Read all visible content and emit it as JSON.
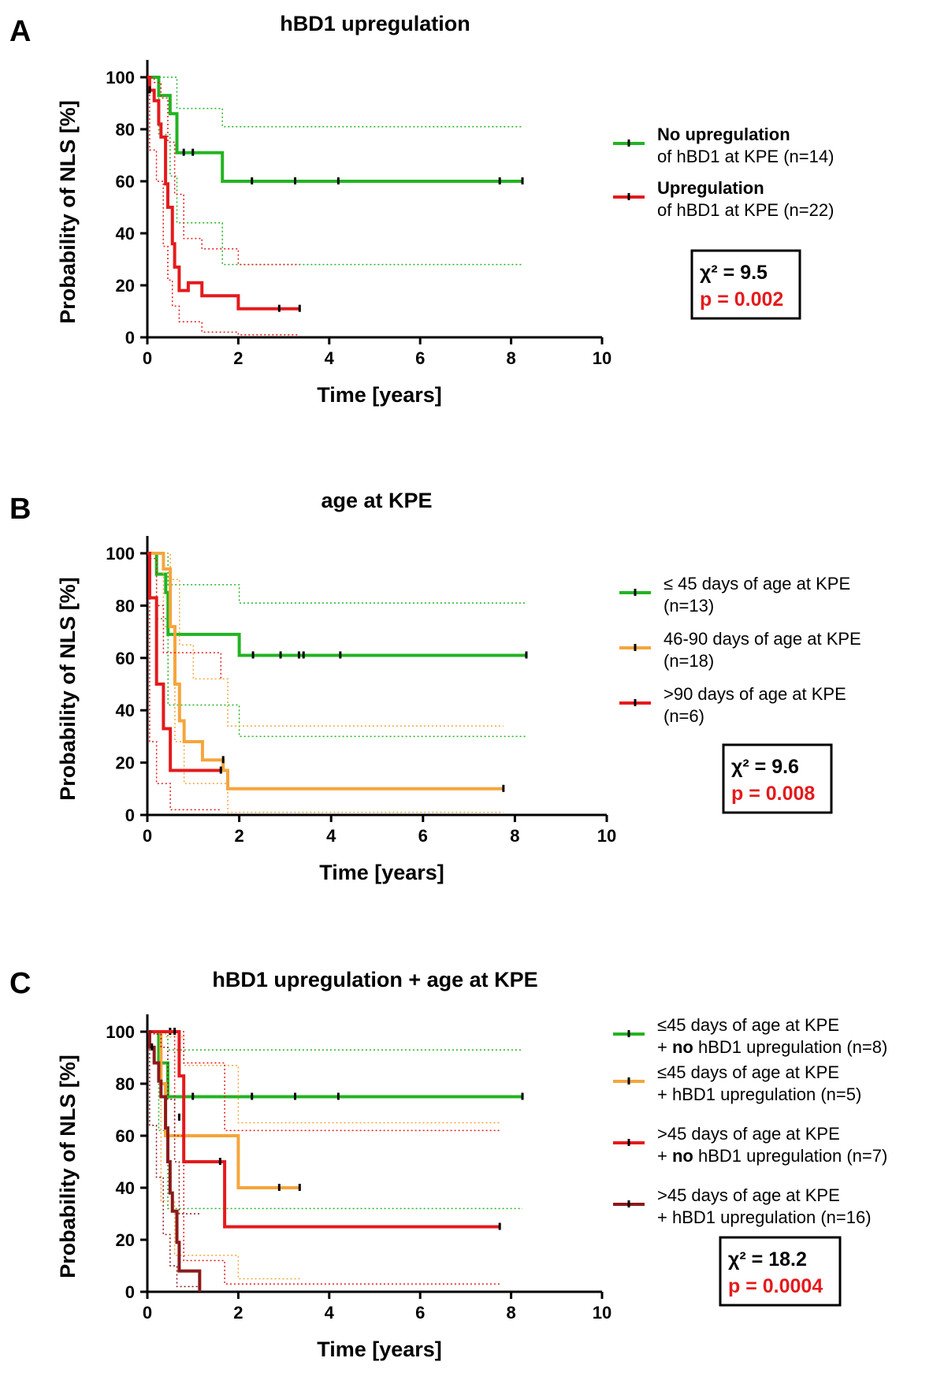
{
  "chart_data": [
    {
      "type": "line",
      "subtype": "kaplan-meier",
      "panel": "A",
      "title": "hBD1 upregulation",
      "xlabel": "Time [years]",
      "ylabel": "Probability of NLS [%]",
      "xlim": [
        0,
        10
      ],
      "ylim": [
        0,
        100
      ],
      "xticks": [
        "0",
        "2",
        "4",
        "6",
        "8",
        "10"
      ],
      "yticks": [
        "0",
        "20",
        "40",
        "60",
        "80",
        "100"
      ],
      "stats": {
        "chi": "χ² = 9.5",
        "p": "p = 0.002"
      },
      "series": [
        {
          "name": "No upregulation of hBD1 at KPE (n=14)",
          "legend_line1": "No upregulation",
          "legend_line2": "of hBD1 at KPE (n=14)",
          "legend_line1_bold": true,
          "color": "#22b422",
          "steps": [
            [
              0,
              100
            ],
            [
              0.25,
              93
            ],
            [
              0.5,
              86
            ],
            [
              0.65,
              71
            ],
            [
              1.65,
              60
            ],
            [
              8.25,
              60
            ]
          ],
          "censor": [
            [
              0.8,
              71
            ],
            [
              1.0,
              71
            ],
            [
              2.3,
              60
            ],
            [
              3.25,
              60
            ],
            [
              4.2,
              60
            ],
            [
              7.75,
              60
            ],
            [
              8.25,
              60
            ]
          ],
          "ci_upper": [
            [
              0,
              100
            ],
            [
              0.25,
              100
            ],
            [
              0.65,
              88
            ],
            [
              1.65,
              81
            ],
            [
              8.25,
              81
            ]
          ],
          "ci_lower": [
            [
              0,
              100
            ],
            [
              0.25,
              78
            ],
            [
              0.5,
              62
            ],
            [
              0.65,
              44
            ],
            [
              1.65,
              28
            ],
            [
              8.25,
              28
            ]
          ]
        },
        {
          "name": "Upregulation of hBD1 at KPE (n=22)",
          "legend_line1": "Upregulation",
          "legend_line2": "of hBD1 at KPE (n=22)",
          "legend_line1_bold": true,
          "color": "#e41a1c",
          "steps": [
            [
              0,
              100
            ],
            [
              0.05,
              95
            ],
            [
              0.15,
              91
            ],
            [
              0.25,
              82
            ],
            [
              0.3,
              77
            ],
            [
              0.4,
              59
            ],
            [
              0.45,
              50
            ],
            [
              0.55,
              36
            ],
            [
              0.6,
              27
            ],
            [
              0.7,
              18
            ],
            [
              0.8,
              18
            ],
            [
              0.9,
              21
            ],
            [
              1.2,
              16
            ],
            [
              2.0,
              11
            ],
            [
              3.35,
              11
            ]
          ],
          "censor": [
            [
              0.05,
              95
            ],
            [
              2.9,
              11
            ],
            [
              3.35,
              11
            ]
          ],
          "ci_upper": [
            [
              0,
              100
            ],
            [
              0.15,
              98
            ],
            [
              0.3,
              92
            ],
            [
              0.45,
              75
            ],
            [
              0.6,
              55
            ],
            [
              0.8,
              38
            ],
            [
              1.2,
              34
            ],
            [
              2.0,
              28
            ],
            [
              3.35,
              28
            ]
          ],
          "ci_lower": [
            [
              0,
              100
            ],
            [
              0.05,
              72
            ],
            [
              0.2,
              60
            ],
            [
              0.35,
              35
            ],
            [
              0.45,
              22
            ],
            [
              0.55,
              12
            ],
            [
              0.7,
              6
            ],
            [
              1.2,
              2
            ],
            [
              2.0,
              1
            ],
            [
              3.35,
              1
            ]
          ]
        }
      ]
    },
    {
      "type": "line",
      "subtype": "kaplan-meier",
      "panel": "B",
      "title": "age at KPE",
      "xlabel": "Time [years]",
      "ylabel": "Probability of NLS [%]",
      "xlim": [
        0,
        10
      ],
      "ylim": [
        0,
        100
      ],
      "xticks": [
        "0",
        "2",
        "4",
        "6",
        "8",
        "10"
      ],
      "yticks": [
        "0",
        "20",
        "40",
        "60",
        "80",
        "100"
      ],
      "stats": {
        "chi": "χ² = 9.6",
        "p": "p = 0.008"
      },
      "series": [
        {
          "name": "≤ 45 days of age at KPE (n=13)",
          "legend_line1": "≤ 45 days of age at KPE",
          "legend_line2": "(n=13)",
          "legend_line1_bold": false,
          "color": "#22b422",
          "steps": [
            [
              0,
              100
            ],
            [
              0.2,
              92
            ],
            [
              0.4,
              85
            ],
            [
              0.45,
              69
            ],
            [
              2.0,
              61
            ],
            [
              8.25,
              61
            ]
          ],
          "censor": [
            [
              2.3,
              61
            ],
            [
              2.9,
              61
            ],
            [
              3.3,
              61
            ],
            [
              3.4,
              61
            ],
            [
              4.2,
              61
            ],
            [
              8.25,
              61
            ]
          ],
          "ci_upper": [
            [
              0,
              100
            ],
            [
              0.2,
              100
            ],
            [
              0.45,
              88
            ],
            [
              2.0,
              81
            ],
            [
              8.25,
              81
            ]
          ],
          "ci_lower": [
            [
              0,
              100
            ],
            [
              0.2,
              75
            ],
            [
              0.45,
              42
            ],
            [
              2.0,
              30
            ],
            [
              8.25,
              30
            ]
          ]
        },
        {
          "name": "46-90 days of age at KPE (n=18)",
          "legend_line1": "46-90 days of age at KPE",
          "legend_line2": "(n=18)",
          "legend_line1_bold": false,
          "color": "#f5a53c",
          "steps": [
            [
              0,
              100
            ],
            [
              0.35,
              94
            ],
            [
              0.5,
              72
            ],
            [
              0.6,
              50
            ],
            [
              0.7,
              36
            ],
            [
              0.8,
              28
            ],
            [
              1.2,
              21
            ],
            [
              1.65,
              17
            ],
            [
              1.75,
              10
            ],
            [
              7.75,
              10
            ]
          ],
          "censor": [
            [
              1.65,
              21
            ],
            [
              7.75,
              10
            ]
          ],
          "ci_upper": [
            [
              0,
              100
            ],
            [
              0.5,
              90
            ],
            [
              0.7,
              65
            ],
            [
              1.0,
              52
            ],
            [
              1.75,
              34
            ],
            [
              7.75,
              34
            ]
          ],
          "ci_lower": [
            [
              0,
              100
            ],
            [
              0.35,
              72
            ],
            [
              0.6,
              28
            ],
            [
              0.8,
              12
            ],
            [
              1.75,
              1
            ],
            [
              7.75,
              1
            ]
          ]
        },
        {
          "name": ">90 days of age at KPE (n=6)",
          "legend_line1": ">90 days of age at KPE",
          "legend_line2": "(n=6)",
          "legend_line1_bold": false,
          "color": "#e41a1c",
          "steps": [
            [
              0,
              100
            ],
            [
              0.05,
              83
            ],
            [
              0.2,
              50
            ],
            [
              0.35,
              33
            ],
            [
              0.5,
              17
            ],
            [
              1.6,
              17
            ]
          ],
          "censor": [
            [
              1.6,
              17
            ]
          ],
          "ci_upper": [
            [
              0,
              100
            ],
            [
              0.05,
              98
            ],
            [
              0.2,
              80
            ],
            [
              0.35,
              62
            ],
            [
              1.6,
              52
            ]
          ],
          "ci_lower": [
            [
              0,
              100
            ],
            [
              0.05,
              28
            ],
            [
              0.2,
              12
            ],
            [
              0.5,
              2
            ],
            [
              1.6,
              2
            ]
          ]
        }
      ]
    },
    {
      "type": "line",
      "subtype": "kaplan-meier",
      "panel": "C",
      "title": "hBD1 upregulation + age at KPE",
      "xlabel": "Time [years]",
      "ylabel": "Probability of NLS [%]",
      "xlim": [
        0,
        10
      ],
      "ylim": [
        0,
        100
      ],
      "xticks": [
        "0",
        "2",
        "4",
        "6",
        "8",
        "10"
      ],
      "yticks": [
        "0",
        "20",
        "40",
        "60",
        "80",
        "100"
      ],
      "stats": {
        "chi": "χ² = 18.2",
        "p": "p = 0.0004"
      },
      "series": [
        {
          "name": "≤45 days of age at KPE + no hBD1 upregulation (n=8)",
          "legend_line1": "≤45 days of age at KPE",
          "legend_line2_pre": "+ ",
          "legend_line2_bold": "no",
          "legend_line2_post": " hBD1 upregulation (n=8)",
          "color": "#22b422",
          "steps": [
            [
              0,
              100
            ],
            [
              0.25,
              88
            ],
            [
              0.45,
              75
            ],
            [
              8.25,
              75
            ]
          ],
          "censor": [
            [
              1.0,
              75
            ],
            [
              2.3,
              75
            ],
            [
              3.25,
              75
            ],
            [
              4.2,
              75
            ],
            [
              8.25,
              75
            ]
          ],
          "ci_upper": [
            [
              0,
              100
            ],
            [
              0.25,
              100
            ],
            [
              0.45,
              93
            ],
            [
              8.25,
              93
            ]
          ],
          "ci_lower": [
            [
              0,
              100
            ],
            [
              0.25,
              62
            ],
            [
              0.45,
              32
            ],
            [
              8.25,
              32
            ]
          ]
        },
        {
          "name": "≤45 days of age at KPE + hBD1 upregulation (n=5)",
          "legend_line1": "≤45 days of age at KPE",
          "legend_line2_pre": "+ hBD1 upregulation (n=5)",
          "legend_line2_bold": "",
          "legend_line2_post": "",
          "color": "#f5a53c",
          "steps": [
            [
              0,
              100
            ],
            [
              0.3,
              80
            ],
            [
              0.4,
              60
            ],
            [
              2.0,
              40
            ],
            [
              3.35,
              40
            ]
          ],
          "censor": [
            [
              0.5,
              100
            ],
            [
              2.9,
              40
            ],
            [
              3.35,
              40
            ]
          ],
          "ci_upper": [
            [
              0,
              100
            ],
            [
              0.4,
              98
            ],
            [
              0.8,
              87
            ],
            [
              2.0,
              65
            ],
            [
              7.75,
              65
            ]
          ],
          "ci_lower": [
            [
              0,
              100
            ],
            [
              0.3,
              35
            ],
            [
              0.6,
              14
            ],
            [
              2.0,
              5
            ],
            [
              3.35,
              5
            ]
          ]
        },
        {
          "name": ">45 days of age at KPE + no hBD1 upregulation (n=7)",
          "legend_line1": ">45 days of age at KPE",
          "legend_line2_pre": "+ ",
          "legend_line2_bold": "no",
          "legend_line2_post": " hBD1 upregulation (n=7)",
          "color": "#e41a1c",
          "steps": [
            [
              0,
              100
            ],
            [
              0.6,
              100
            ],
            [
              0.7,
              83
            ],
            [
              0.8,
              67
            ],
            [
              0.8,
              50
            ],
            [
              1.65,
              50
            ],
            [
              1.7,
              25
            ],
            [
              7.75,
              25
            ]
          ],
          "censor": [
            [
              0.6,
              100
            ],
            [
              0.7,
              67
            ],
            [
              1.6,
              50
            ],
            [
              7.75,
              25
            ]
          ],
          "ci_upper": [
            [
              0,
              100
            ],
            [
              0.6,
              100
            ],
            [
              0.8,
              88
            ],
            [
              1.7,
              62
            ],
            [
              7.75,
              62
            ]
          ],
          "ci_lower": [
            [
              0,
              100
            ],
            [
              0.6,
              60
            ],
            [
              0.8,
              12
            ],
            [
              1.7,
              3
            ],
            [
              7.75,
              3
            ]
          ]
        },
        {
          "name": ">45 days of age at KPE + hBD1 upregulation (n=16)",
          "legend_line1": ">45 days of age at KPE",
          "legend_line2_pre": "+ hBD1 upregulation (n=16)",
          "legend_line2_bold": "",
          "legend_line2_post": "",
          "color": "#8b1a1a",
          "steps": [
            [
              0,
              100
            ],
            [
              0.05,
              94
            ],
            [
              0.15,
              88
            ],
            [
              0.25,
              81
            ],
            [
              0.3,
              75
            ],
            [
              0.4,
              63
            ],
            [
              0.45,
              50
            ],
            [
              0.5,
              38
            ],
            [
              0.55,
              31
            ],
            [
              0.65,
              19
            ],
            [
              0.7,
              8
            ],
            [
              1.15,
              0
            ]
          ],
          "censor": [
            [
              0.1,
              94
            ]
          ],
          "ci_upper": [
            [
              0,
              100
            ],
            [
              0.15,
              99
            ],
            [
              0.3,
              94
            ],
            [
              0.45,
              74
            ],
            [
              0.6,
              50
            ],
            [
              0.7,
              30
            ],
            [
              1.15,
              30
            ]
          ],
          "ci_lower": [
            [
              0,
              100
            ],
            [
              0.05,
              64
            ],
            [
              0.2,
              44
            ],
            [
              0.35,
              22
            ],
            [
              0.5,
              10
            ],
            [
              0.65,
              2
            ],
            [
              1.15,
              0
            ]
          ]
        }
      ]
    }
  ]
}
